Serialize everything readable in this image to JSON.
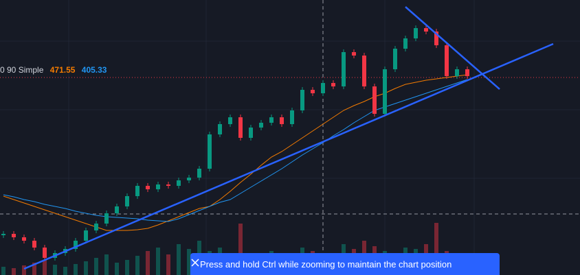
{
  "chart_data": {
    "type": "candlestick",
    "indicator_label": "0 90 Simple",
    "indicator_values": [
      {
        "value": 471.55,
        "label": "471.55",
        "color": "#f57c00"
      },
      {
        "value": 405.33,
        "label": "405.33",
        "color": "#2196f3"
      }
    ],
    "ylim": [
      0,
      400
    ],
    "volume_lim": [
      0,
      100
    ],
    "up_color": "#089981",
    "down_color": "#f23645",
    "closes": [
      60,
      55,
      50,
      40,
      25,
      32,
      38,
      50,
      65,
      75,
      90,
      100,
      115,
      130,
      125,
      132,
      130,
      138,
      142,
      155,
      205,
      220,
      230,
      200,
      215,
      222,
      230,
      220,
      240,
      270,
      265,
      280,
      275,
      325,
      320,
      275,
      235,
      300,
      330,
      345,
      360,
      355,
      335,
      290,
      300,
      290
    ],
    "volumes": [
      12,
      10,
      14,
      18,
      22,
      15,
      12,
      16,
      20,
      25,
      30,
      18,
      22,
      28,
      35,
      40,
      30,
      45,
      38,
      50,
      35,
      40,
      32,
      75,
      30,
      28,
      35,
      30,
      25,
      40,
      35,
      30,
      28,
      45,
      38,
      50,
      42,
      35,
      30,
      40,
      38,
      45,
      76,
      35,
      30,
      28
    ],
    "ma_series": [
      {
        "name": "MA 90 orange",
        "color": "#f57c00",
        "values": [
          115,
          110,
          105,
          100,
          95,
          90,
          85,
          80,
          75,
          70,
          65,
          65,
          65,
          66,
          68,
          73,
          79,
          85,
          91,
          97,
          100,
          110,
          122,
          135,
          147,
          160,
          172,
          180,
          190,
          200,
          210,
          220,
          230,
          240,
          247,
          253,
          260,
          265,
          272,
          278,
          281,
          284,
          286,
          288,
          290,
          292
        ]
      },
      {
        "name": "MA blue",
        "color": "#2196f3",
        "values": [
          117,
          114,
          110,
          107,
          103,
          100,
          97,
          93,
          90,
          87,
          85,
          84,
          83,
          82,
          80,
          79,
          78,
          82,
          88,
          94,
          100,
          106,
          110,
          119,
          128,
          137,
          146,
          155,
          165,
          175,
          184,
          193,
          203,
          212,
          222,
          231,
          240,
          245,
          250,
          255,
          260,
          265,
          270,
          275,
          280,
          285
        ]
      }
    ]
  },
  "toast": {
    "message": "Press and hold Ctrl while zooming to maintain the chart position"
  }
}
